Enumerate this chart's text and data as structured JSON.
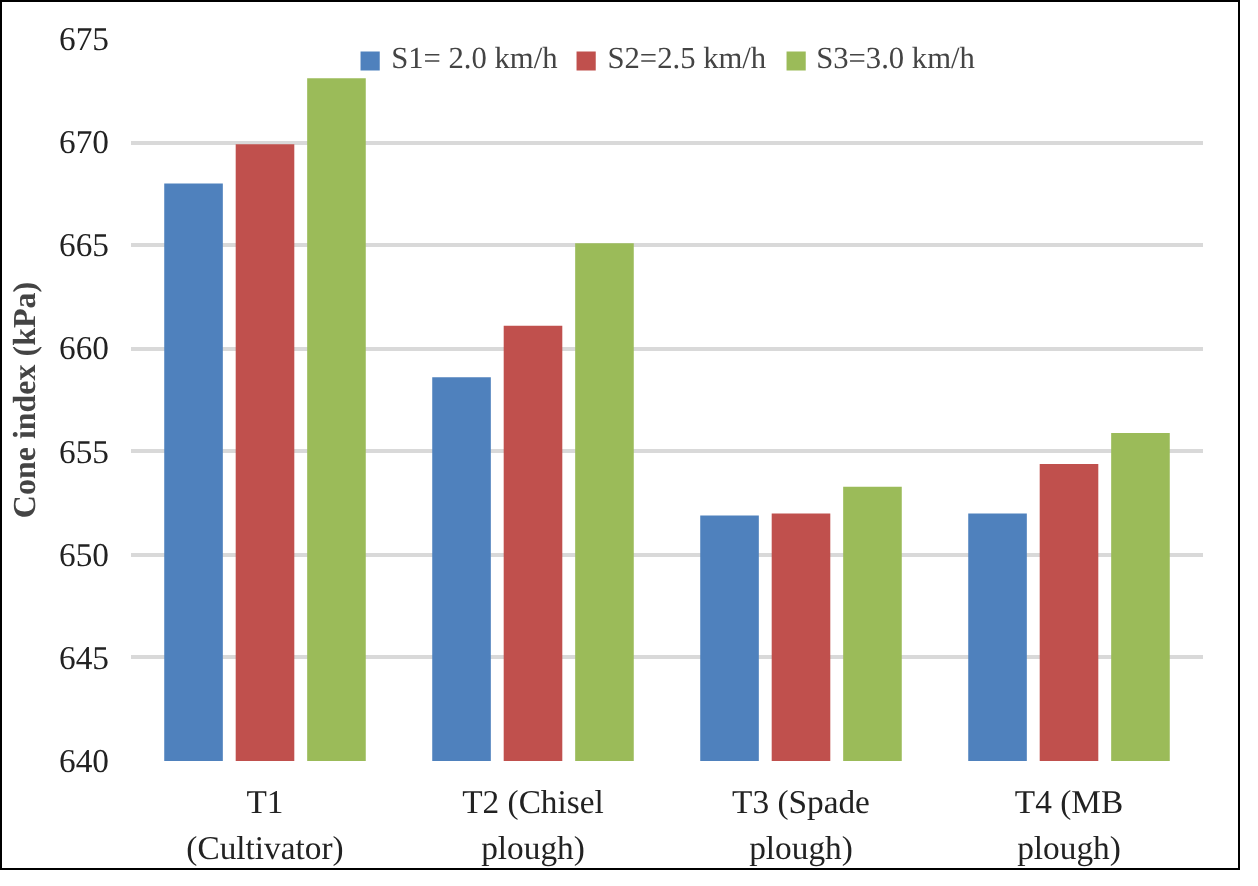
{
  "chart_data": {
    "type": "bar",
    "ylabel": "Cone index (kPa)",
    "categories": [
      "T1\n(Cultivator)",
      "T2 (Chisel\nplough)",
      "T3 (Spade\nplough)",
      "T4 (MB\nplough)"
    ],
    "series": [
      {
        "name": "S1= 2.0 km/h",
        "color": "#4f81bd",
        "values": [
          668.0,
          658.6,
          651.9,
          652.0
        ]
      },
      {
        "name": "S2=2.5 km/h",
        "color": "#c0504d",
        "values": [
          669.9,
          661.1,
          652.0,
          654.4
        ]
      },
      {
        "name": "S3=3.0 km/h",
        "color": "#9bbb59",
        "values": [
          673.1,
          665.1,
          653.3,
          655.9
        ]
      }
    ],
    "ylim": [
      640,
      675
    ],
    "yticks": [
      640,
      645,
      650,
      655,
      660,
      665,
      670,
      675
    ],
    "grid": "y",
    "legend": "top"
  }
}
